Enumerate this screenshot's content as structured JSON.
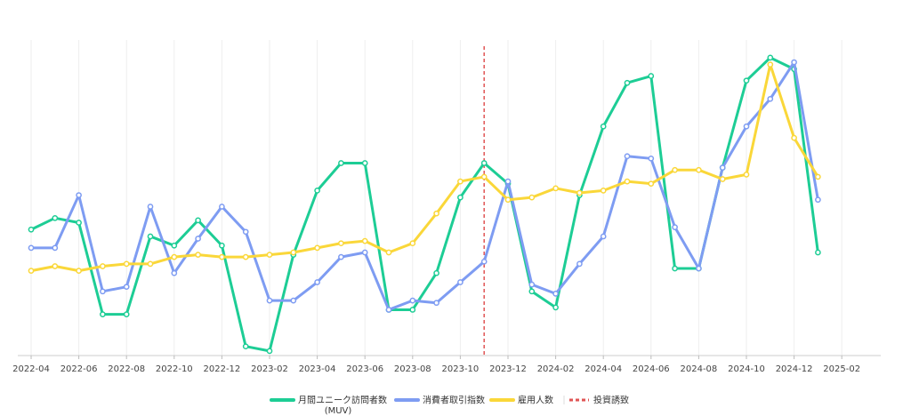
{
  "chart_data": {
    "type": "line",
    "x_dates": [
      "2022-04",
      "2022-05",
      "2022-06",
      "2022-07",
      "2022-08",
      "2022-09",
      "2022-10",
      "2022-11",
      "2022-12",
      "2023-01",
      "2023-02",
      "2023-03",
      "2023-04",
      "2023-05",
      "2023-06",
      "2023-07",
      "2023-08",
      "2023-09",
      "2023-10",
      "2023-11",
      "2023-12",
      "2024-01",
      "2024-02",
      "2024-03",
      "2024-04",
      "2024-05",
      "2024-06",
      "2024-07",
      "2024-08",
      "2024-09",
      "2024-10",
      "2024-11",
      "2024-12",
      "2025-01"
    ],
    "x_ticks": [
      "2022-04",
      "2022-06",
      "2022-08",
      "2022-10",
      "2022-12",
      "2023-02",
      "2023-04",
      "2023-06",
      "2023-08",
      "2023-10",
      "2023-12",
      "2024-02",
      "2024-04",
      "2024-06",
      "2024-08",
      "2024-10",
      "2024-12",
      "2025-02"
    ],
    "series": [
      {
        "name": "月間ユニーク訪問者数",
        "name_line2": "(MUV)",
        "color": "#1dcd95",
        "values": [
          43,
          48,
          46,
          6,
          6,
          40,
          36,
          47,
          36,
          -8,
          -10,
          32,
          60,
          72,
          72,
          8,
          8,
          24,
          57,
          72,
          63,
          16,
          9,
          58,
          88,
          107,
          110,
          26,
          26,
          70,
          108,
          118,
          113,
          33
        ]
      },
      {
        "name": "消費者取引指数",
        "color": "#7e9cf2",
        "values": [
          35,
          35,
          58,
          16,
          18,
          53,
          24,
          39,
          53,
          42,
          12,
          12,
          20,
          31,
          33,
          8,
          12,
          11,
          20,
          29,
          64,
          19,
          15,
          28,
          40,
          75,
          74,
          44,
          26,
          70,
          88,
          100,
          116,
          56
        ]
      },
      {
        "name": "雇用人数",
        "color": "#fad739",
        "values": [
          25,
          27,
          25,
          27,
          28,
          28,
          31,
          32,
          31,
          31,
          32,
          33,
          35,
          37,
          38,
          33,
          37,
          50,
          64,
          66,
          56,
          57,
          61,
          59,
          60,
          64,
          63,
          69,
          69,
          65,
          67,
          115,
          83,
          66
        ]
      }
    ],
    "markers": [
      {
        "label": "投資誘致",
        "x": "2023-11",
        "color": "#e05555",
        "style": "dashed"
      }
    ],
    "ylim": [
      -12,
      123
    ],
    "grid": "vertical",
    "legend": "bottom-center"
  }
}
